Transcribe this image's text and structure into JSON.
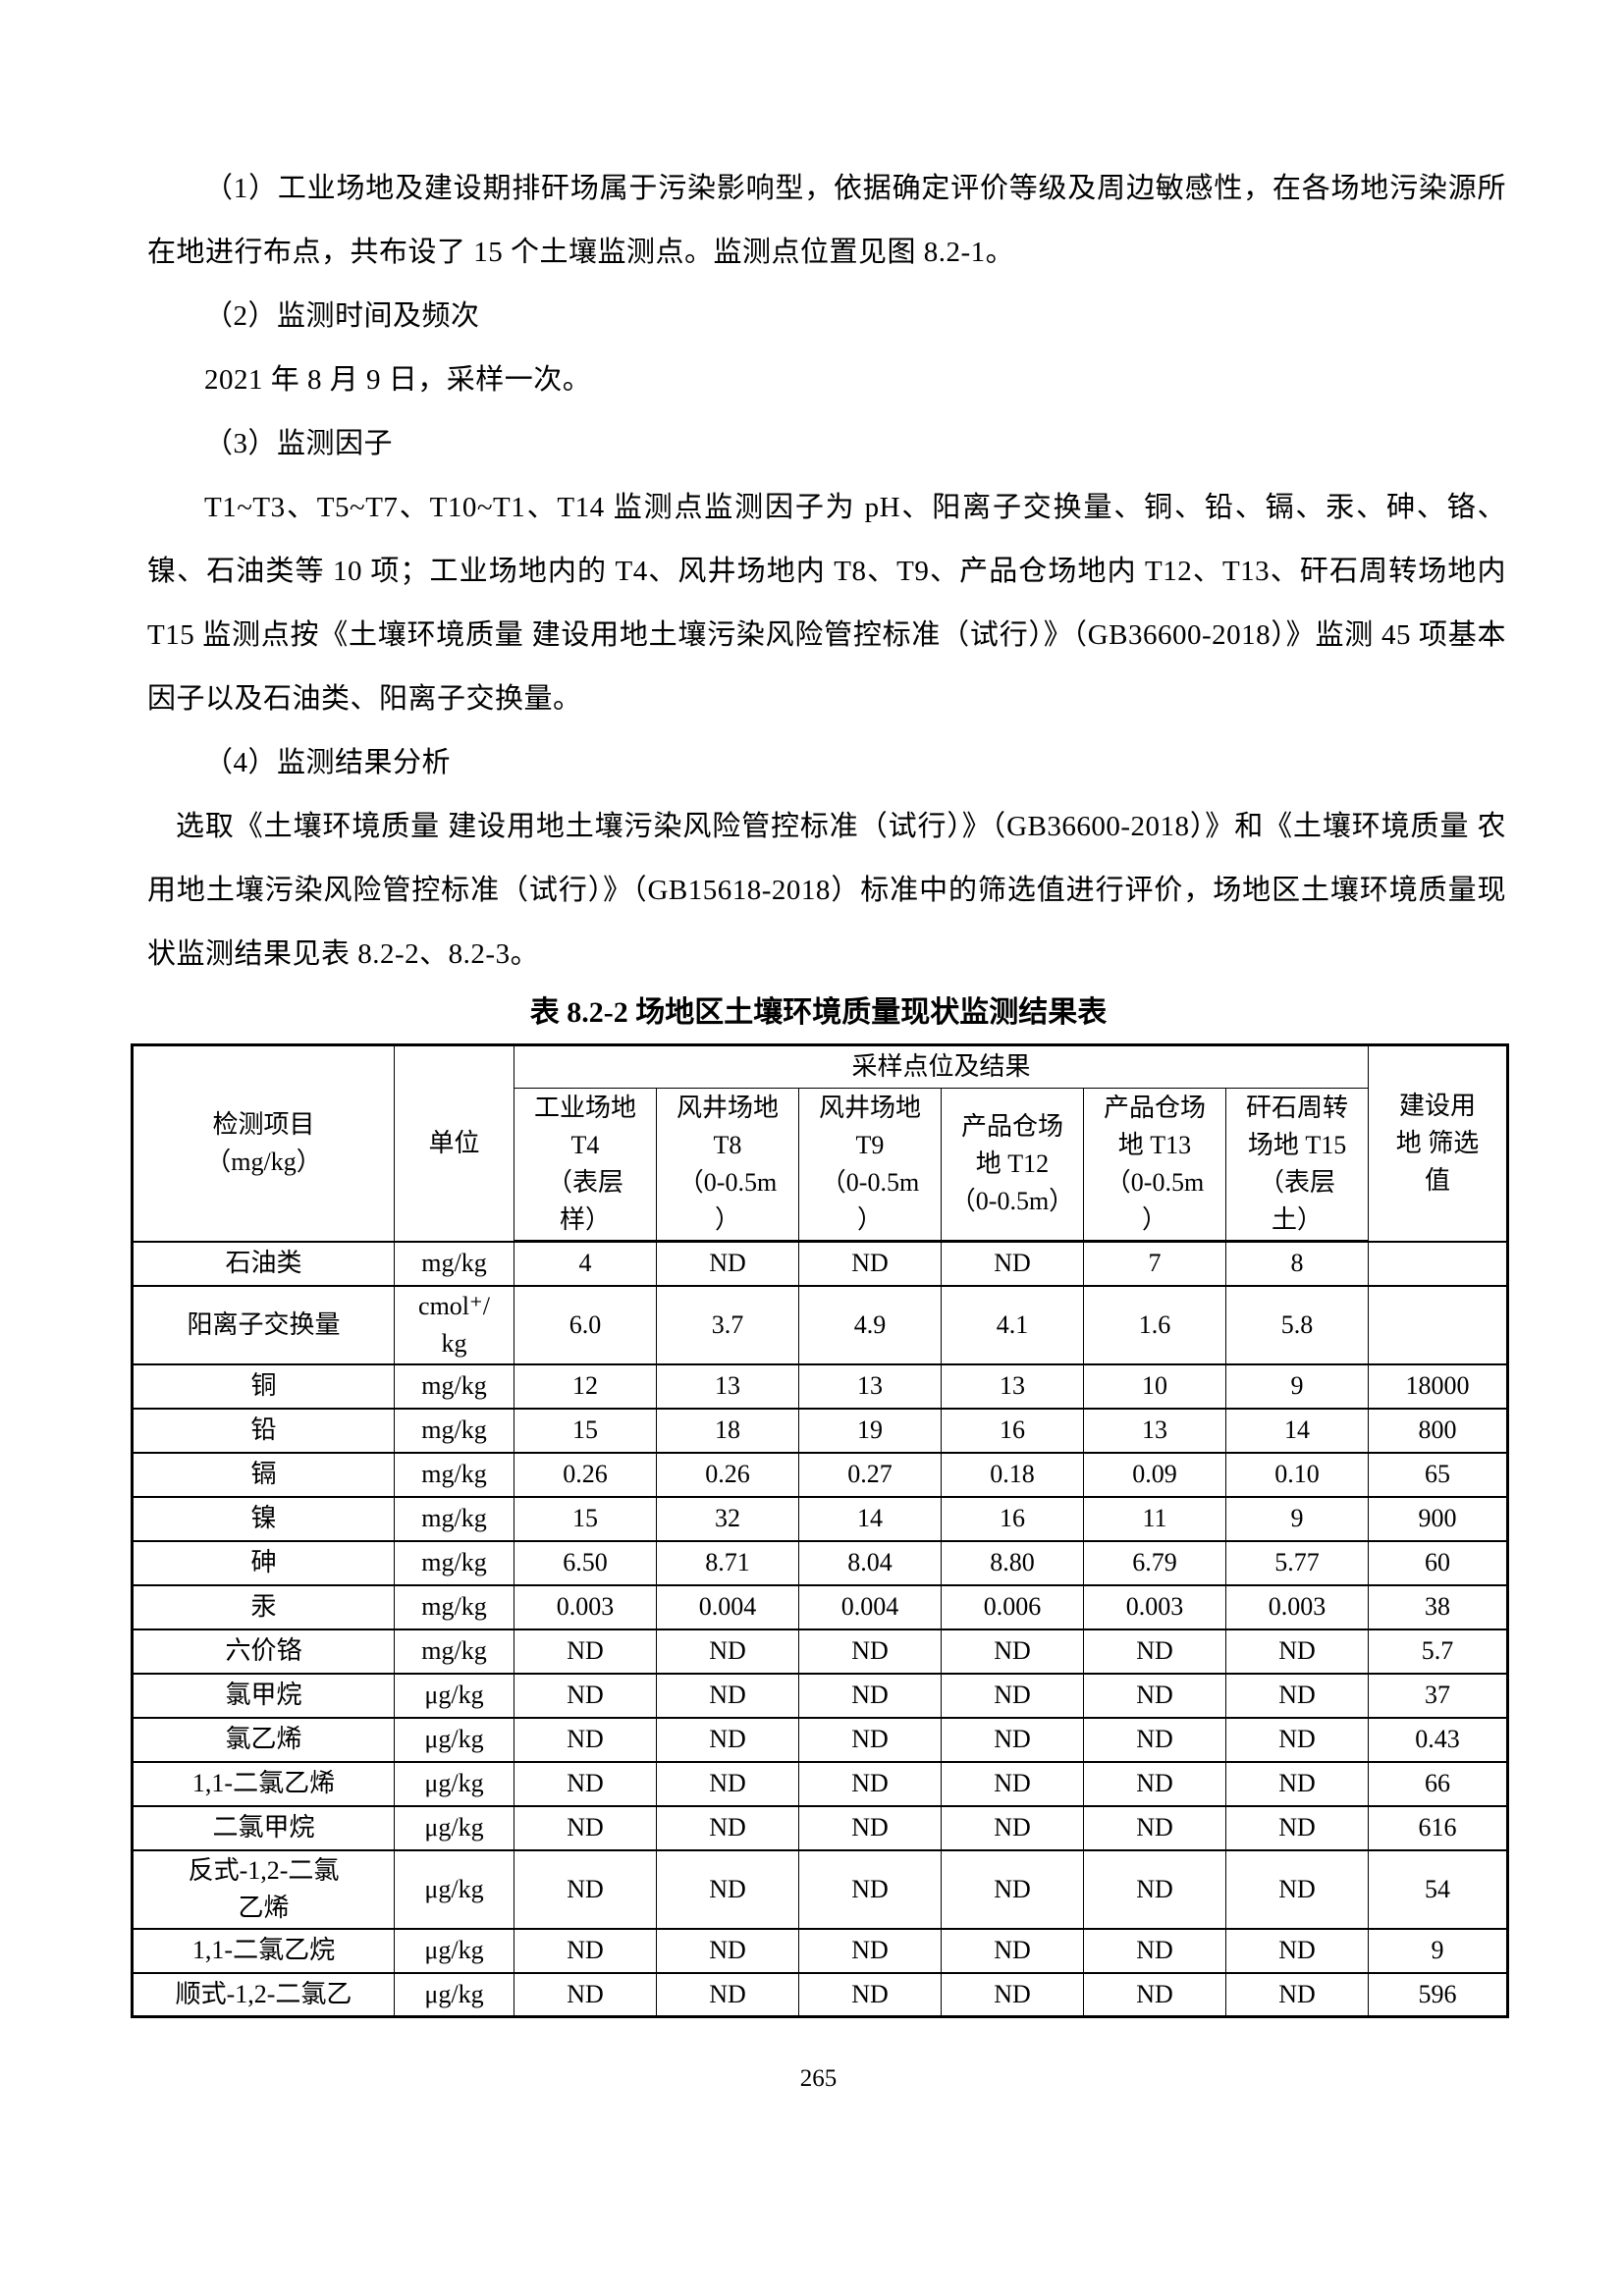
{
  "paragraphs": [
    {
      "indent": 2,
      "text": "（1）工业场地及建设期排矸场属于污染影响型，依据确定评价等级及周边敏感性，在各场地污染源所在地进行布点，共布设了 15 个土壤监测点。监测点位置见图 8.2-1。"
    },
    {
      "indent": 2,
      "text": "（2）监测时间及频次"
    },
    {
      "indent": 2,
      "text": "2021 年 8 月 9 日，采样一次。"
    },
    {
      "indent": 2,
      "text": "（3）监测因子"
    },
    {
      "indent": 2,
      "text": "T1~T3、T5~T7、T10~T1、T14 监测点监测因子为 pH、阳离子交换量、铜、铅、镉、汞、砷、铬、镍、石油类等 10 项；工业场地内的 T4、风井场地内 T8、T9、产品仓场地内 T12、T13、矸石周转场地内 T15 监测点按《土壤环境质量 建设用地土壤污染风险管控标准（试行）》（GB36600-2018）》监测 45 项基本因子以及石油类、阳离子交换量。"
    },
    {
      "indent": 2,
      "text": "（4）监测结果分析"
    },
    {
      "indent": 1,
      "text": "选取《土壤环境质量 建设用地土壤污染风险管控标准（试行）》（GB36600-2018）》和《土壤环境质量 农用地土壤污染风险管控标准（试行）》（GB15618-2018）标准中的筛选值进行评价，场地区土壤环境质量现状监测结果见表 8.2-2、8.2-3。"
    }
  ],
  "table": {
    "title": "表 8.2-2 场地区土壤环境质量现状监测结果表",
    "header": {
      "item": "检测项目\n（mg/kg）",
      "unit": "单位",
      "group": "采样点位及结果",
      "screening": "建设用\n地 筛选\n值",
      "samples": [
        "工业场地\nT4\n（表层\n样）",
        "风井场地\nT8\n（0-0.5m\n）",
        "风井场地\nT9\n（0-0.5m\n）",
        "产品仓场\n地 T12\n（0-0.5m）",
        "产品仓场\n地 T13\n（0-0.5m\n）",
        "矸石周转\n场地 T15\n（表层\n土）"
      ]
    },
    "rows": [
      {
        "name": "石油类",
        "unit": "mg/kg",
        "values": [
          "4",
          "ND",
          "ND",
          "ND",
          "7",
          "8"
        ],
        "screening": ""
      },
      {
        "name": "阳离子交换量",
        "unit": "cmol⁺/\nkg",
        "values": [
          "6.0",
          "3.7",
          "4.9",
          "4.1",
          "1.6",
          "5.8"
        ],
        "screening": ""
      },
      {
        "name": "铜",
        "unit": "mg/kg",
        "values": [
          "12",
          "13",
          "13",
          "13",
          "10",
          "9"
        ],
        "screening": "18000"
      },
      {
        "name": "铅",
        "unit": "mg/kg",
        "values": [
          "15",
          "18",
          "19",
          "16",
          "13",
          "14"
        ],
        "screening": "800"
      },
      {
        "name": "镉",
        "unit": "mg/kg",
        "values": [
          "0.26",
          "0.26",
          "0.27",
          "0.18",
          "0.09",
          "0.10"
        ],
        "screening": "65"
      },
      {
        "name": "镍",
        "unit": "mg/kg",
        "values": [
          "15",
          "32",
          "14",
          "16",
          "11",
          "9"
        ],
        "screening": "900"
      },
      {
        "name": "砷",
        "unit": "mg/kg",
        "values": [
          "6.50",
          "8.71",
          "8.04",
          "8.80",
          "6.79",
          "5.77"
        ],
        "screening": "60"
      },
      {
        "name": "汞",
        "unit": "mg/kg",
        "values": [
          "0.003",
          "0.004",
          "0.004",
          "0.006",
          "0.003",
          "0.003"
        ],
        "screening": "38"
      },
      {
        "name": "六价铬",
        "unit": "mg/kg",
        "values": [
          "ND",
          "ND",
          "ND",
          "ND",
          "ND",
          "ND"
        ],
        "screening": "5.7"
      },
      {
        "name": "氯甲烷",
        "unit": "μg/kg",
        "values": [
          "ND",
          "ND",
          "ND",
          "ND",
          "ND",
          "ND"
        ],
        "screening": "37"
      },
      {
        "name": "氯乙烯",
        "unit": "μg/kg",
        "values": [
          "ND",
          "ND",
          "ND",
          "ND",
          "ND",
          "ND"
        ],
        "screening": "0.43"
      },
      {
        "name": "1,1-二氯乙烯",
        "unit": "μg/kg",
        "values": [
          "ND",
          "ND",
          "ND",
          "ND",
          "ND",
          "ND"
        ],
        "screening": "66"
      },
      {
        "name": "二氯甲烷",
        "unit": "μg/kg",
        "values": [
          "ND",
          "ND",
          "ND",
          "ND",
          "ND",
          "ND"
        ],
        "screening": "616"
      },
      {
        "name": "反式-1,2-二氯\n乙烯",
        "unit": "μg/kg",
        "values": [
          "ND",
          "ND",
          "ND",
          "ND",
          "ND",
          "ND"
        ],
        "screening": "54"
      },
      {
        "name": "1,1-二氯乙烷",
        "unit": "μg/kg",
        "values": [
          "ND",
          "ND",
          "ND",
          "ND",
          "ND",
          "ND"
        ],
        "screening": "9"
      },
      {
        "name": "顺式-1,2-二氯乙",
        "unit": "μg/kg",
        "values": [
          "ND",
          "ND",
          "ND",
          "ND",
          "ND",
          "ND"
        ],
        "screening": "596"
      }
    ]
  },
  "footer": {
    "page_number": "265"
  }
}
